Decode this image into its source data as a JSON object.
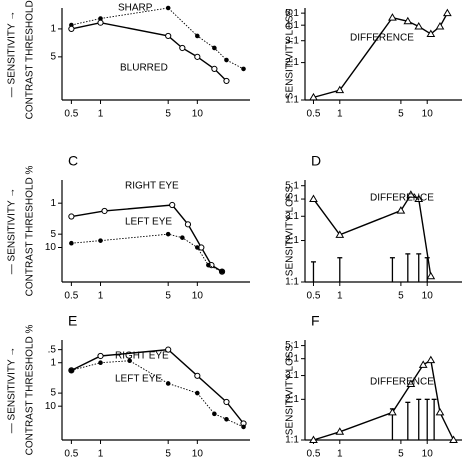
{
  "chart_data": [
    {
      "type": "line",
      "ylabel": "CONTRAST THRESHOLD %",
      "ylabel2": "— SENSITIVITY →",
      "xlog": true,
      "ylog": true,
      "xlim": [
        0.4,
        35
      ],
      "ylim": [
        60,
        0.3
      ],
      "xticks": [
        0.5,
        1,
        5,
        10
      ],
      "yticks": [
        1,
        5
      ],
      "series": [
        {
          "name": "SHARP",
          "color": "#000",
          "dashed": true,
          "marker": "dot",
          "x": [
            0.5,
            1,
            5,
            10,
            15,
            20,
            30
          ],
          "values": [
            0.8,
            0.55,
            0.3,
            1.5,
            3,
            6,
            10
          ]
        },
        {
          "name": "BLURRED",
          "color": "#000",
          "dashed": false,
          "marker": "circle",
          "x": [
            0.5,
            1,
            5,
            7,
            10,
            15,
            20
          ],
          "values": [
            1,
            0.7,
            1.5,
            3,
            5,
            10,
            20
          ]
        }
      ]
    },
    {
      "type": "line",
      "ylabel": "SENSITIVITY LOSS",
      "xlog": true,
      "ylog": true,
      "xlim": [
        0.4,
        25
      ],
      "ylim": [
        1,
        5.5
      ],
      "xticks": [
        0.5,
        1,
        5,
        10
      ],
      "yticks": [
        {
          "value": 1,
          "label": "1:1"
        },
        {
          "value": 2,
          "label": "2:1"
        },
        {
          "value": 3,
          "label": "3:1"
        },
        {
          "value": 4,
          "label": "4:1"
        },
        {
          "value": 5,
          "label": "5:1"
        }
      ],
      "series": [
        {
          "name": "DIFFERENCE",
          "color": "#000",
          "dashed": false,
          "marker": "triangle",
          "x": [
            0.5,
            1,
            4,
            6,
            8,
            11,
            14,
            17
          ],
          "values": [
            1.05,
            1.2,
            4.6,
            4.3,
            3.9,
            3.4,
            3.9,
            5
          ]
        }
      ]
    },
    {
      "type": "line",
      "letter": "C",
      "ylabel": "CONTRAST THRESHOLD %",
      "ylabel2": "— SENSITIVITY →",
      "xlog": true,
      "ylog": true,
      "xlim": [
        0.4,
        35
      ],
      "ylim": [
        60,
        0.3
      ],
      "xticks": [
        0.5,
        1,
        5,
        10
      ],
      "yticks": [
        1,
        5,
        10
      ],
      "series": [
        {
          "name": "RIGHT EYE",
          "color": "#000",
          "dashed": false,
          "marker": "circle",
          "x": [
            0.5,
            1.1,
            5.5,
            8,
            11,
            14,
            18
          ],
          "values": [
            2,
            1.5,
            1.1,
            3,
            10,
            25,
            35
          ]
        },
        {
          "name": "LEFT EYE",
          "color": "#000",
          "dashed": true,
          "marker": "dot",
          "x": [
            0.5,
            1,
            5,
            7,
            10,
            13,
            18
          ],
          "values": [
            8,
            7,
            5,
            6,
            10,
            25,
            35
          ]
        }
      ]
    },
    {
      "type": "line",
      "letter": "D",
      "ylabel": "SENSITIVITY LOSS",
      "xlog": true,
      "ylog": true,
      "xlim": [
        0.4,
        25
      ],
      "ylim": [
        1,
        5.5
      ],
      "xticks": [
        0.5,
        1,
        5,
        10
      ],
      "yticks": [
        {
          "value": 1,
          "label": "1:1"
        },
        {
          "value": 2,
          "label": "2:1"
        },
        {
          "value": 3,
          "label": "3:1"
        },
        {
          "value": 4,
          "label": "4:1"
        },
        {
          "value": 5,
          "label": "5:1"
        }
      ],
      "series": [
        {
          "name": "DIFFERENCE",
          "color": "#000",
          "dashed": false,
          "marker": "triangle",
          "x": [
            0.5,
            1,
            5,
            6.5,
            8,
            11
          ],
          "values": [
            4,
            2.2,
            3.3,
            4.3,
            4.0,
            1.1
          ]
        }
      ],
      "bars": {
        "x": [
          0.5,
          1,
          4,
          6,
          8,
          10
        ],
        "values": [
          1.4,
          1.5,
          1.5,
          1.6,
          1.6,
          1.5
        ]
      }
    },
    {
      "type": "line",
      "letter": "E",
      "ylabel": "CONTRAST THRESHOLD %",
      "ylabel2": "— SENSITIVITY →",
      "xlog": true,
      "ylog": true,
      "xlim": [
        0.4,
        35
      ],
      "ylim": [
        60,
        0.3
      ],
      "xticks": [
        0.5,
        1,
        5,
        10
      ],
      "yticks": [
        {
          "value": 0.5,
          "label": ".5"
        },
        1,
        5,
        10
      ],
      "series": [
        {
          "name": "RIGHT EYE",
          "color": "#000",
          "dashed": false,
          "marker": "circle",
          "x": [
            0.5,
            1,
            5,
            10,
            20,
            30
          ],
          "values": [
            1.5,
            0.7,
            0.5,
            2,
            8,
            25
          ]
        },
        {
          "name": "LEFT EYE",
          "color": "#000",
          "dashed": true,
          "marker": "dot",
          "x": [
            0.5,
            1,
            2,
            5,
            10,
            15,
            20,
            30
          ],
          "values": [
            1.5,
            1,
            0.9,
            3,
            5,
            15,
            20,
            30
          ]
        }
      ]
    },
    {
      "type": "line",
      "letter": "F",
      "ylabel": "SENSITIVITY LOSS",
      "xlog": true,
      "ylog": true,
      "xlim": [
        0.4,
        25
      ],
      "ylim": [
        1,
        5.5
      ],
      "xticks": [
        0.5,
        1,
        5,
        10
      ],
      "yticks": [
        {
          "value": 1,
          "label": "1:1"
        },
        {
          "value": 2,
          "label": "2:1"
        },
        {
          "value": 3,
          "label": "3:1"
        },
        {
          "value": 4,
          "label": "4:1"
        },
        {
          "value": 5,
          "label": "5:1"
        }
      ],
      "series": [
        {
          "name": "DIFFERENCE",
          "color": "#000",
          "dashed": false,
          "marker": "triangle",
          "x": [
            0.5,
            1,
            4,
            6.5,
            9,
            11,
            14,
            20
          ],
          "values": [
            1,
            1.15,
            1.6,
            2.6,
            3.6,
            3.9,
            1.6,
            1
          ]
        }
      ],
      "bars": {
        "x": [
          4,
          6,
          8,
          10,
          12
        ],
        "values": [
          1.7,
          1.9,
          2.0,
          2.0,
          2.0
        ]
      }
    }
  ]
}
